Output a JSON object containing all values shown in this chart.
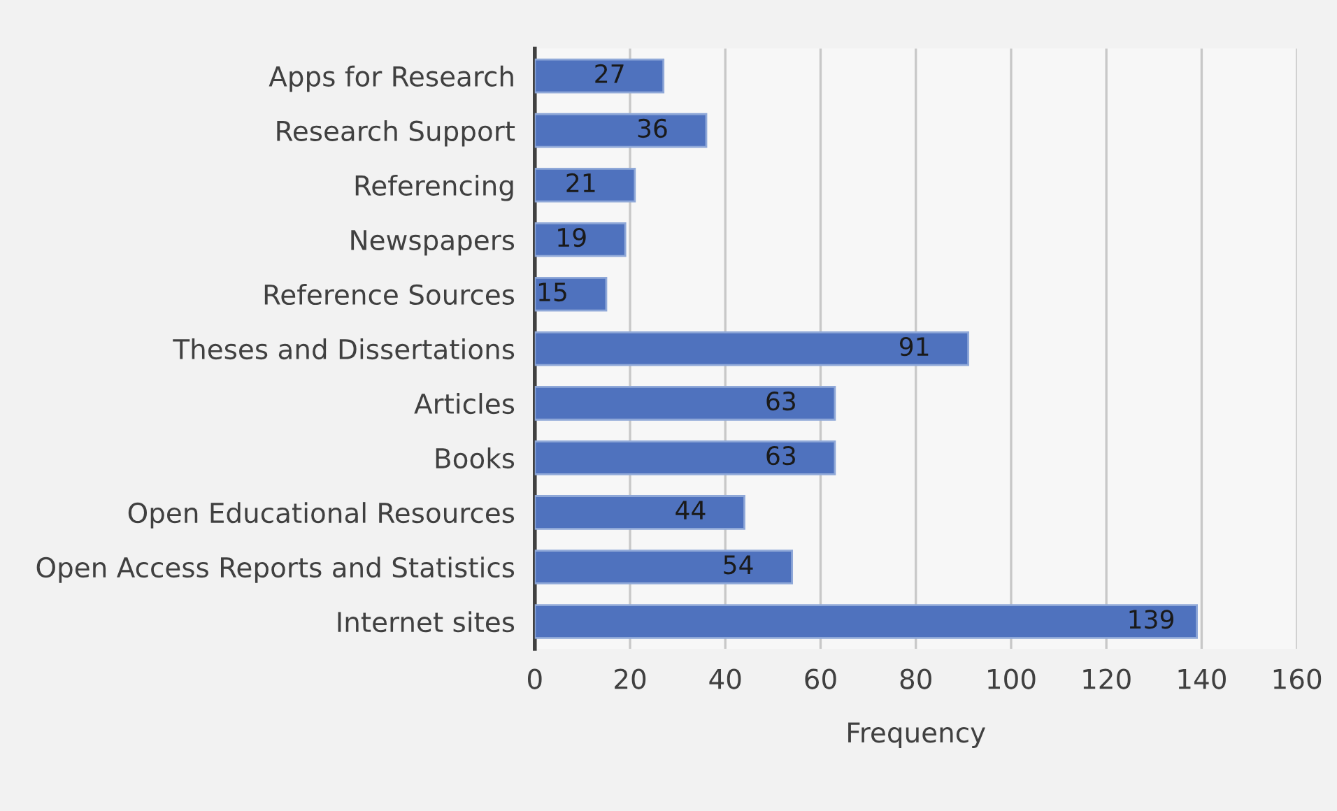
{
  "chart_data": {
    "type": "bar",
    "orientation": "horizontal",
    "xlabel": "Frequency",
    "categories": [
      "Apps for Research",
      "Research Support",
      "Referencing",
      "Newspapers",
      "Reference Sources",
      "Theses and Dissertations",
      "Articles",
      "Books",
      "Open Educational Resources",
      "Open Access Reports and Statistics",
      "Internet sites"
    ],
    "values": [
      27,
      36,
      21,
      19,
      15,
      91,
      63,
      63,
      44,
      54,
      139
    ],
    "color": "#4f72be",
    "xlim": [
      0,
      160
    ],
    "xticks": [
      0,
      20,
      40,
      60,
      80,
      100,
      120,
      140,
      160
    ],
    "grid": "x",
    "data_labels": true
  }
}
